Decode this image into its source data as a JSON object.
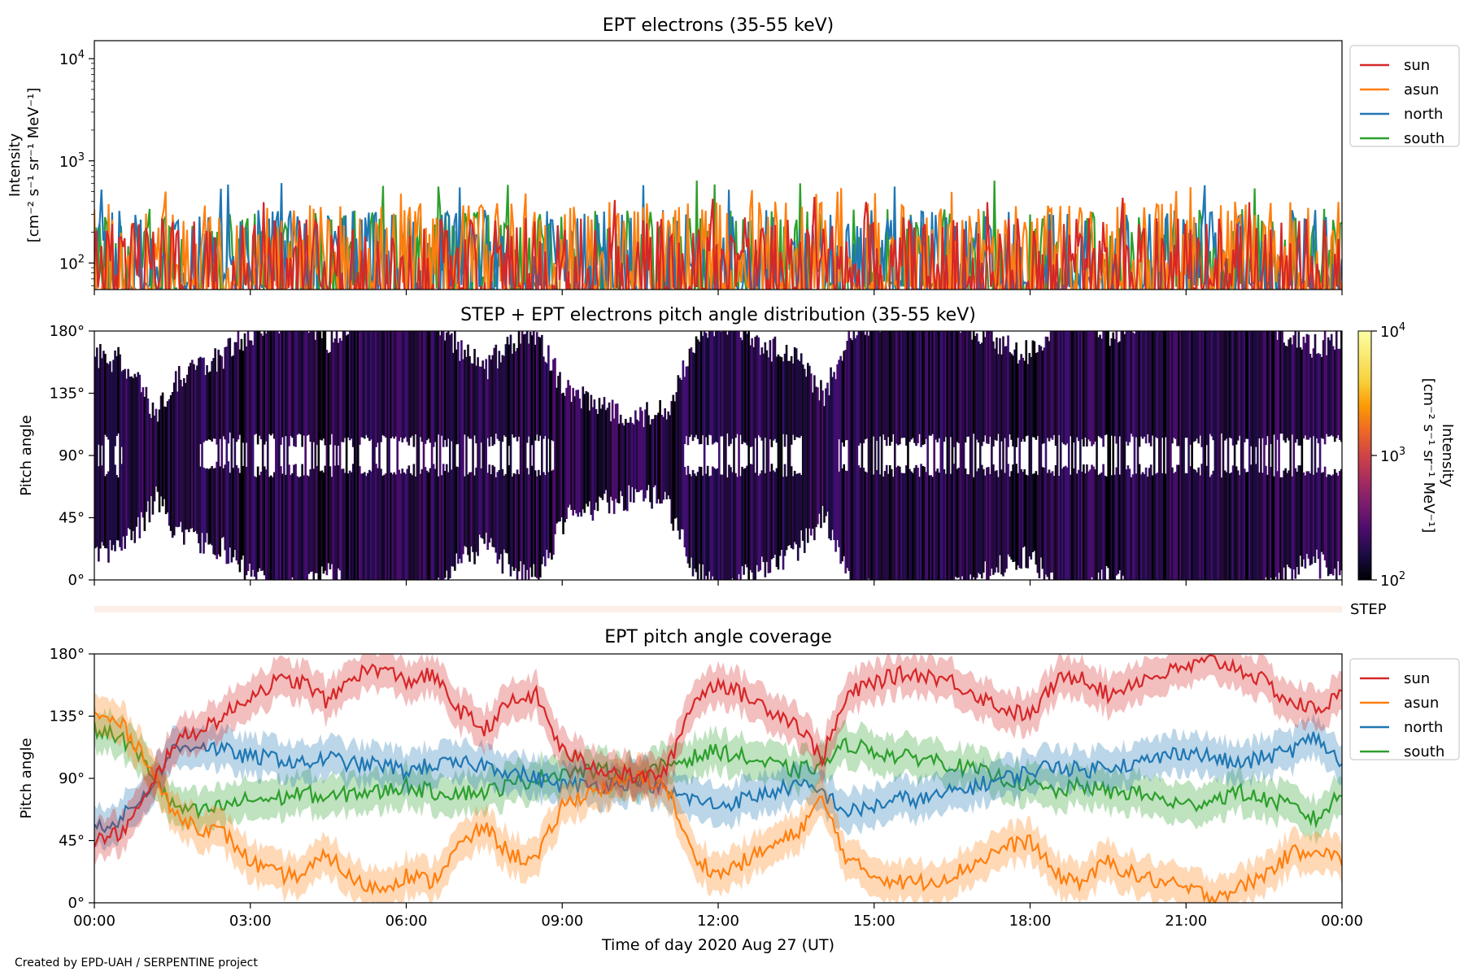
{
  "footer": {
    "credit": "Created by EPD-UAH / SERPENTINE project"
  },
  "colors": {
    "sun": "#d62728",
    "asun": "#ff7f0e",
    "north": "#1f77b4",
    "south": "#2ca02c"
  },
  "chart_data": [
    {
      "type": "line",
      "title": "EPT electrons (35-55 keV)",
      "ylabel_line1": "Intensity",
      "ylabel_line2": "[cm⁻² s⁻¹ sr⁻¹ MeV⁻¹]",
      "yscale": "log",
      "ylim": [
        55,
        15000
      ],
      "yticks": [
        {
          "value": 100,
          "base": "10",
          "exp": "2"
        },
        {
          "value": 1000,
          "base": "10",
          "exp": "3"
        },
        {
          "value": 10000,
          "base": "10",
          "exp": "4"
        }
      ],
      "xlim_hours": [
        0,
        24
      ],
      "legend_position": "right outside, top",
      "series": [
        {
          "name": "sun",
          "color": "#d62728",
          "typical_range": [
            55,
            280
          ],
          "peak_max": 460
        },
        {
          "name": "asun",
          "color": "#ff7f0e",
          "typical_range": [
            60,
            400
          ],
          "peak_max": 560
        },
        {
          "name": "north",
          "color": "#1f77b4",
          "typical_range": [
            60,
            330
          ],
          "peak_max": 620
        },
        {
          "name": "south",
          "color": "#2ca02c",
          "typical_range": [
            60,
            340
          ],
          "peak_max": 650
        }
      ]
    },
    {
      "type": "heatmap",
      "title": "STEP + EPT electrons pitch angle distribution (35-55 keV)",
      "ylabel": "Pitch angle",
      "ylim": [
        0,
        180
      ],
      "yticks": [
        "0°",
        "45°",
        "90°",
        "135°",
        "180°"
      ],
      "colorbar": {
        "label_line1": "Intensity",
        "label_line2": "[cm⁻² s⁻¹ sr⁻¹ MeV⁻¹]",
        "scale": "log",
        "range": [
          100,
          10000
        ],
        "ticks": [
          {
            "value": 100,
            "base": "10",
            "exp": "2"
          },
          {
            "value": 1000,
            "base": "10",
            "exp": "3"
          },
          {
            "value": 10000,
            "base": "10",
            "exp": "4"
          }
        ],
        "colormap": "inferno"
      }
    },
    {
      "type": "band",
      "label": "STEP"
    },
    {
      "type": "line",
      "title": "EPT pitch angle coverage",
      "ylabel": "Pitch angle",
      "ylim": [
        0,
        180
      ],
      "yticks": [
        "0°",
        "45°",
        "90°",
        "135°",
        "180°"
      ],
      "xlabel": "Time of day 2020 Aug 27 (UT)",
      "xticks": [
        "00:00",
        "03:00",
        "06:00",
        "09:00",
        "12:00",
        "15:00",
        "18:00",
        "21:00",
        "00:00"
      ],
      "legend_position": "right outside, top",
      "x_hours": [
        0,
        0.5,
        1,
        1.5,
        2,
        2.5,
        3,
        3.5,
        4,
        4.5,
        5,
        5.5,
        6,
        6.5,
        7,
        7.5,
        8,
        8.5,
        9,
        9.5,
        10,
        10.5,
        11,
        11.5,
        12,
        12.5,
        13,
        13.5,
        14,
        14.5,
        15,
        15.5,
        16,
        16.5,
        17,
        17.5,
        18,
        18.5,
        19,
        19.5,
        20,
        20.5,
        21,
        21.5,
        22,
        22.5,
        23,
        23.5,
        24
      ],
      "series": [
        {
          "name": "sun",
          "color": "#d62728",
          "values": [
            45,
            50,
            75,
            115,
            125,
            135,
            150,
            160,
            160,
            145,
            165,
            170,
            160,
            165,
            140,
            125,
            145,
            150,
            110,
            100,
            95,
            90,
            95,
            145,
            160,
            150,
            140,
            130,
            105,
            150,
            160,
            165,
            165,
            160,
            150,
            140,
            135,
            160,
            165,
            150,
            160,
            165,
            170,
            175,
            170,
            160,
            145,
            140,
            150
          ]
        },
        {
          "name": "asun",
          "color": "#ff7f0e",
          "values": [
            135,
            130,
            105,
            65,
            55,
            50,
            30,
            20,
            20,
            35,
            15,
            10,
            20,
            15,
            40,
            55,
            35,
            30,
            70,
            80,
            85,
            90,
            85,
            35,
            20,
            30,
            40,
            50,
            75,
            30,
            20,
            15,
            15,
            20,
            30,
            40,
            45,
            20,
            15,
            30,
            20,
            15,
            10,
            5,
            10,
            20,
            35,
            40,
            30
          ]
        },
        {
          "name": "north",
          "color": "#1f77b4",
          "values": [
            55,
            60,
            80,
            110,
            115,
            110,
            105,
            105,
            100,
            105,
            100,
            100,
            95,
            100,
            100,
            100,
            95,
            90,
            85,
            85,
            85,
            90,
            80,
            75,
            70,
            75,
            80,
            85,
            80,
            65,
            70,
            75,
            75,
            80,
            85,
            90,
            95,
            100,
            95,
            100,
            100,
            105,
            110,
            105,
            100,
            105,
            110,
            120,
            100
          ]
        },
        {
          "name": "south",
          "color": "#2ca02c",
          "values": [
            125,
            120,
            100,
            70,
            65,
            70,
            75,
            75,
            80,
            75,
            80,
            80,
            85,
            80,
            80,
            80,
            85,
            90,
            95,
            95,
            95,
            90,
            100,
            105,
            110,
            105,
            100,
            95,
            100,
            115,
            110,
            105,
            105,
            100,
            95,
            90,
            85,
            80,
            85,
            80,
            80,
            75,
            70,
            75,
            80,
            75,
            70,
            60,
            80
          ]
        }
      ]
    }
  ]
}
